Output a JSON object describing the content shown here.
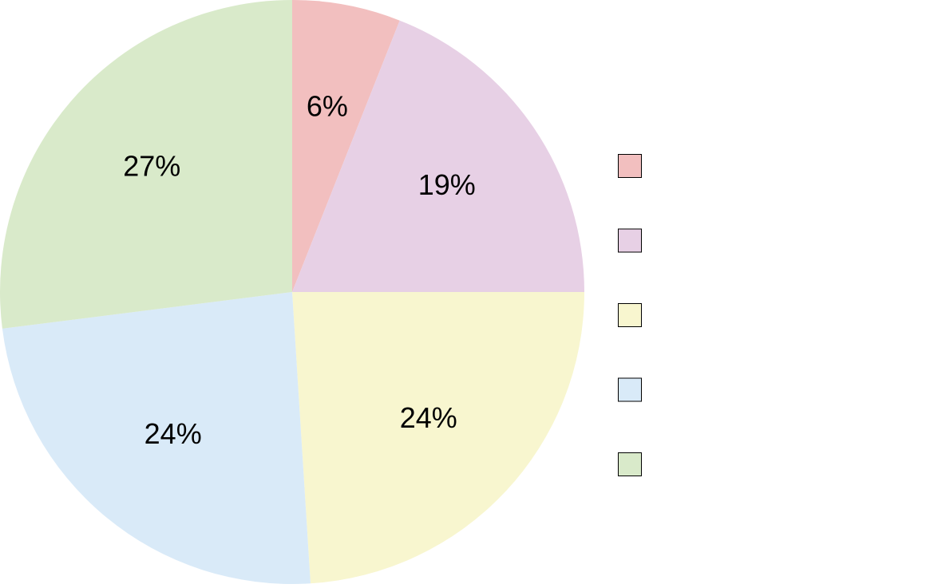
{
  "chart_data": {
    "type": "pie",
    "title": "",
    "start": "top",
    "direction": "clockwise",
    "legend_position": "right",
    "slices": [
      {
        "value": 6,
        "label": "6%",
        "color": "#f2bfbf"
      },
      {
        "value": 19,
        "label": "19%",
        "color": "#e7d0e5"
      },
      {
        "value": 24,
        "label": "24%",
        "color": "#f8f6cf"
      },
      {
        "value": 24,
        "label": "24%",
        "color": "#d9eaf8"
      },
      {
        "value": 27,
        "label": "27%",
        "color": "#d9eaca"
      }
    ]
  }
}
